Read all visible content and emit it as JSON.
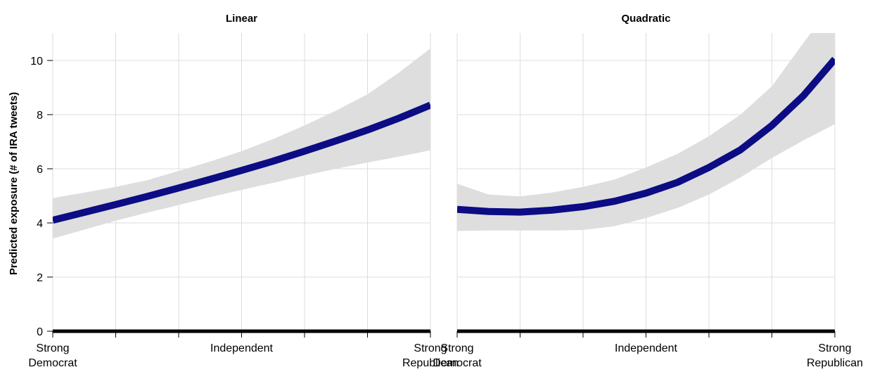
{
  "ylabel": "Predicted exposure (# of IRA tweets)",
  "y_ticks": [
    "0",
    "2",
    "4",
    "6",
    "8",
    "10"
  ],
  "chart_data": [
    {
      "type": "line",
      "title": "Linear",
      "xlabel": "",
      "ylabel": "Predicted exposure (# of IRA tweets)",
      "xlim": [
        1,
        7
      ],
      "ylim": [
        0,
        11
      ],
      "grid": true,
      "x_tick_labels": [
        {
          "x": 1,
          "line1": "Strong",
          "line2": "Democrat"
        },
        {
          "x": 4,
          "line1": "Independent",
          "line2": ""
        },
        {
          "x": 7,
          "line1": "Strong",
          "line2": "Republican"
        }
      ],
      "series": [
        {
          "x": [
            1,
            1.5,
            2,
            2.5,
            3,
            3.5,
            4,
            4.5,
            5,
            5.5,
            6,
            6.5,
            7
          ],
          "y": [
            4.1,
            4.39,
            4.68,
            4.98,
            5.29,
            5.61,
            5.94,
            6.28,
            6.65,
            7.03,
            7.43,
            7.87,
            8.35
          ],
          "lower": [
            3.42,
            3.75,
            4.08,
            4.38,
            4.66,
            4.95,
            5.22,
            5.48,
            5.75,
            6.0,
            6.23,
            6.45,
            6.68
          ],
          "upper": [
            4.92,
            5.12,
            5.33,
            5.58,
            5.92,
            6.27,
            6.65,
            7.1,
            7.6,
            8.15,
            8.75,
            9.55,
            10.45
          ]
        }
      ]
    },
    {
      "type": "line",
      "title": "Quadratic",
      "xlabel": "",
      "ylabel": "",
      "xlim": [
        1,
        7
      ],
      "ylim": [
        0,
        11
      ],
      "grid": true,
      "x_tick_labels": [
        {
          "x": 1,
          "line1": "Strong",
          "line2": "Democrat"
        },
        {
          "x": 4,
          "line1": "Independent",
          "line2": ""
        },
        {
          "x": 7,
          "line1": "Strong",
          "line2": "Republican"
        }
      ],
      "series": [
        {
          "x": [
            1,
            1.5,
            2,
            2.5,
            3,
            3.5,
            4,
            4.5,
            5,
            5.5,
            6,
            6.5,
            7
          ],
          "y": [
            4.5,
            4.42,
            4.4,
            4.47,
            4.6,
            4.8,
            5.1,
            5.5,
            6.05,
            6.7,
            7.6,
            8.7,
            10.05
          ],
          "lower": [
            3.7,
            3.72,
            3.72,
            3.72,
            3.74,
            3.88,
            4.18,
            4.55,
            5.05,
            5.68,
            6.4,
            7.05,
            7.65
          ],
          "upper": [
            5.45,
            5.05,
            4.98,
            5.12,
            5.33,
            5.6,
            6.05,
            6.55,
            7.2,
            8.0,
            9.05,
            10.65,
            12.2
          ]
        }
      ]
    }
  ]
}
